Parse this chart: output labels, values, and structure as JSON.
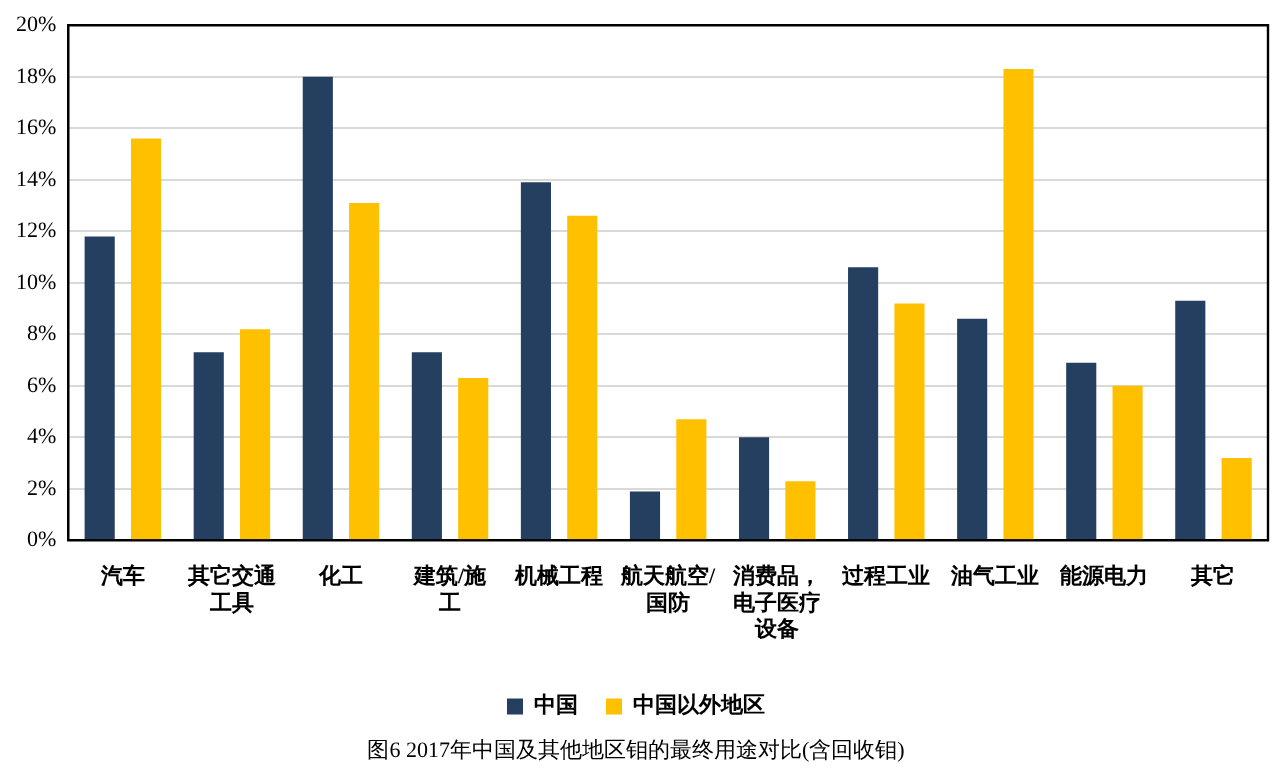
{
  "chart_data": {
    "type": "bar",
    "title": "图6 2017年中国及其他地区钼的最终用途对比(含回收钼)",
    "categories": [
      "汽车",
      "其它交通工具",
      "化工",
      "建筑/施工",
      "机械工程",
      "航天航空/国防",
      "消费品，电子医疗设备",
      "过程工业",
      "油气工业",
      "能源电力",
      "其它"
    ],
    "series": [
      {
        "name": "中国",
        "color": "#243f60",
        "values": [
          11.8,
          7.3,
          18.0,
          7.3,
          13.9,
          1.9,
          4.0,
          10.6,
          8.6,
          6.9,
          9.3
        ]
      },
      {
        "name": "中国以外地区",
        "color": "#ffc000",
        "values": [
          15.6,
          8.2,
          13.1,
          6.3,
          12.6,
          4.7,
          2.3,
          9.2,
          18.3,
          6.0,
          3.2
        ]
      }
    ],
    "ylim": [
      0,
      20
    ],
    "yticks": [
      {
        "value": 0,
        "label": "0%"
      },
      {
        "value": 2,
        "label": "2%"
      },
      {
        "value": 4,
        "label": "4%"
      },
      {
        "value": 6,
        "label": "6%"
      },
      {
        "value": 8,
        "label": "8%"
      },
      {
        "value": 10,
        "label": "10%"
      },
      {
        "value": 12,
        "label": "12%"
      },
      {
        "value": 14,
        "label": "14%"
      },
      {
        "value": 16,
        "label": "16%"
      },
      {
        "value": 18,
        "label": "18%"
      },
      {
        "value": 20,
        "label": "20%"
      }
    ],
    "grid": "y",
    "legend": "bottom"
  }
}
